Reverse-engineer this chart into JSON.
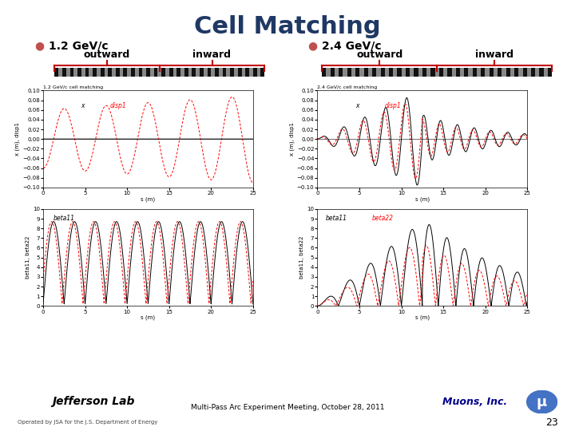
{
  "title": "Cell Matching",
  "title_color": "#1F3864",
  "title_fontsize": 22,
  "bg_color": "#FFFFFF",
  "bullet1_label": "1.2 GeV/c",
  "bullet2_label": "2.4 GeV/c",
  "bullet_color": "#C0504D",
  "outward_label": "outward",
  "inward_label": "inward",
  "brace_color": "#C00000",
  "header_bar_color": "#17375E",
  "footer_bar_color": "#17375E",
  "footer_text": "Multi-Pass Arc Experiment Meeting, October 28, 2011",
  "footer_left": "Jefferson Lab",
  "footer_right": "Muons, Inc.",
  "page_num": "23",
  "operated_text": "Operated by JSA for the J.S. Department of Energy",
  "plot1_title": "1.2 GeV/c cell matching",
  "plot2_title": "2.4 GeV/c cell matching",
  "s_max": 25.0,
  "line_color_black": "#000000",
  "line_color_red": "#CC0000"
}
